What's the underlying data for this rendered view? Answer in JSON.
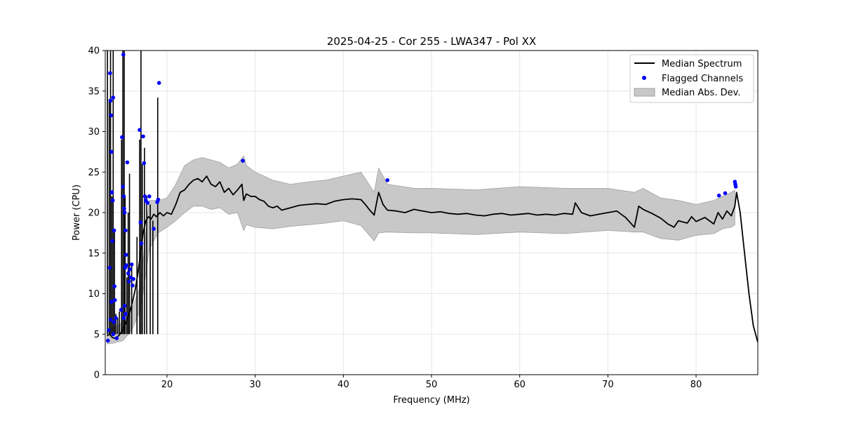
{
  "chart_data": {
    "type": "line",
    "title": "2025-04-25 - Cor 255 - LWA347 - Pol XX",
    "xlabel": "Frequency (MHz)",
    "ylabel": "Power (CPU)",
    "xlim": [
      13.0,
      87.0
    ],
    "ylim": [
      0,
      40
    ],
    "x_ticks": [
      20,
      30,
      40,
      50,
      60,
      70,
      80
    ],
    "y_ticks": [
      0,
      5,
      10,
      15,
      20,
      25,
      30,
      35,
      40
    ],
    "grid": true,
    "legend_position": "top-right",
    "legend": [
      "Median Spectrum",
      "Flagged Channels",
      "Median Abs. Dev."
    ],
    "colors": {
      "median": "#000000",
      "flagged": "#0000ff",
      "band": "#c8c8c8",
      "band_edge": "#a0a0a0",
      "grid": "#e6e6e6"
    },
    "series": [
      {
        "name": "Median Spectrum",
        "kind": "line",
        "x": [
          13.2,
          13.5,
          13.8,
          14.0,
          14.3,
          14.6,
          14.9,
          15.2,
          15.5,
          15.8,
          16.1,
          16.4,
          16.7,
          17.0,
          17.3,
          17.6,
          17.9,
          18.2,
          18.5,
          18.8,
          19.2,
          19.6,
          20.0,
          20.5,
          21.0,
          21.5,
          22.0,
          22.5,
          23.0,
          23.5,
          24.0,
          24.5,
          25.0,
          25.5,
          26.0,
          26.5,
          27.0,
          27.5,
          28.0,
          28.5,
          28.7,
          29.0,
          29.5,
          30.0,
          30.5,
          31.0,
          31.5,
          32.0,
          32.5,
          33.0,
          34.0,
          35.0,
          36.0,
          37.0,
          38.0,
          39.0,
          40.0,
          41.0,
          42.0,
          42.5,
          43.0,
          43.5,
          44.0,
          44.5,
          45.0,
          46.0,
          47.0,
          48.0,
          49.0,
          50.0,
          51.0,
          52.0,
          53.0,
          54.0,
          55.0,
          56.0,
          57.0,
          58.0,
          59.0,
          60.0,
          61.0,
          62.0,
          63.0,
          64.0,
          65.0,
          66.0,
          66.3,
          67.0,
          68.0,
          69.0,
          70.0,
          71.0,
          72.0,
          73.0,
          73.5,
          74.0,
          75.0,
          76.0,
          76.8,
          77.5,
          78.0,
          79.0,
          79.5,
          80.0,
          81.0,
          82.0,
          82.5,
          83.0,
          83.5,
          84.0,
          84.4,
          84.6,
          85.0,
          85.5,
          86.0,
          86.5,
          87.0
        ],
        "y": [
          4.8,
          5.0,
          4.6,
          4.5,
          4.6,
          4.9,
          5.4,
          6.0,
          6.8,
          7.8,
          9.0,
          10.5,
          12.5,
          15.0,
          17.5,
          19.0,
          19.5,
          19.2,
          19.8,
          19.5,
          20.0,
          19.6,
          20.0,
          19.8,
          21.0,
          22.5,
          22.8,
          23.5,
          24.0,
          24.2,
          23.8,
          24.5,
          23.5,
          23.2,
          23.8,
          22.5,
          23.0,
          22.2,
          22.8,
          23.5,
          21.5,
          22.3,
          22.0,
          22.0,
          21.6,
          21.4,
          20.8,
          20.6,
          20.8,
          20.3,
          20.6,
          20.9,
          21.0,
          21.1,
          21.0,
          21.4,
          21.6,
          21.7,
          21.6,
          21.0,
          20.3,
          19.7,
          22.5,
          21.0,
          20.3,
          20.2,
          20.0,
          20.4,
          20.2,
          20.0,
          20.1,
          19.9,
          19.8,
          19.9,
          19.7,
          19.6,
          19.8,
          19.9,
          19.7,
          19.8,
          19.9,
          19.7,
          19.8,
          19.7,
          19.9,
          19.8,
          21.2,
          20.0,
          19.6,
          19.8,
          20.0,
          20.2,
          19.4,
          18.2,
          20.8,
          20.4,
          19.9,
          19.3,
          18.6,
          18.2,
          19.0,
          18.7,
          19.5,
          18.9,
          19.4,
          18.6,
          20.0,
          19.2,
          20.2,
          19.6,
          20.8,
          22.5,
          20.0,
          15.0,
          10.0,
          6.0,
          4.0
        ]
      },
      {
        "name": "Median Abs. Dev.",
        "kind": "band",
        "x": [
          13.2,
          14.0,
          15.0,
          16.0,
          17.0,
          18.0,
          19.0,
          20.0,
          21.0,
          22.0,
          23.0,
          24.0,
          25.0,
          26.0,
          27.0,
          28.0,
          28.7,
          29.0,
          30.0,
          32.0,
          34.0,
          36.0,
          38.0,
          40.0,
          42.0,
          43.5,
          44.0,
          45.0,
          48.0,
          50.0,
          55.0,
          60.0,
          65.0,
          70.0,
          73.0,
          74.0,
          76.0,
          78.0,
          80.0,
          82.0,
          83.0,
          84.0,
          84.4
        ],
        "lower": [
          3.8,
          3.9,
          4.2,
          5.5,
          8.0,
          15.5,
          17.5,
          18.2,
          19.0,
          20.0,
          20.8,
          20.8,
          20.4,
          20.6,
          19.8,
          20.0,
          17.8,
          18.5,
          18.2,
          18.0,
          18.3,
          18.5,
          18.7,
          19.0,
          18.4,
          16.5,
          17.5,
          17.6,
          17.5,
          17.5,
          17.3,
          17.6,
          17.4,
          17.8,
          17.6,
          17.6,
          16.8,
          16.6,
          17.2,
          17.4,
          18.0,
          18.2,
          18.5
        ],
        "upper": [
          5.6,
          5.8,
          6.5,
          8.0,
          11.0,
          21.5,
          21.5,
          21.8,
          23.5,
          25.8,
          26.5,
          26.8,
          26.5,
          26.2,
          25.5,
          26.0,
          27.0,
          25.8,
          25.0,
          24.0,
          23.5,
          23.8,
          24.0,
          24.5,
          25.0,
          22.5,
          25.5,
          23.5,
          23.0,
          23.0,
          22.8,
          23.2,
          23.0,
          23.0,
          22.5,
          23.0,
          21.8,
          21.5,
          21.0,
          21.5,
          22.0,
          22.5,
          22.8
        ]
      },
      {
        "name": "Flagged Channels",
        "kind": "scatter",
        "x": [
          13.3,
          13.4,
          13.5,
          13.55,
          13.6,
          13.65,
          13.7,
          13.75,
          13.8,
          13.85,
          13.9,
          14.0,
          14.05,
          14.1,
          14.2,
          14.3,
          13.6,
          13.7,
          13.9,
          14.0,
          14.8,
          14.9,
          15.0,
          15.05,
          15.1,
          15.15,
          15.2,
          15.25,
          15.3,
          15.35,
          15.4,
          15.5,
          15.6,
          15.7,
          15.8,
          15.9,
          16.0,
          16.1,
          16.2,
          15.3,
          15.2,
          15.1,
          16.9,
          17.0,
          17.1,
          17.3,
          17.4,
          17.5,
          17.6,
          17.8,
          18.0,
          18.5,
          18.9,
          19.0,
          19.1,
          28.6,
          45.0,
          82.6,
          83.3,
          84.4,
          84.45,
          84.5
        ],
        "y": [
          4.2,
          5.5,
          13.2,
          37.2,
          33.8,
          32.0,
          27.5,
          22.5,
          16.5,
          21.5,
          34.2,
          17.8,
          10.9,
          9.2,
          7.0,
          4.5,
          6.8,
          9.0,
          5.0,
          6.5,
          8.0,
          29.3,
          23.2,
          39.5,
          22.0,
          20.5,
          20.0,
          13.2,
          17.8,
          14.8,
          13.5,
          26.2,
          12.5,
          11.5,
          13.0,
          12.0,
          13.6,
          11.0,
          11.8,
          7.5,
          8.5,
          7.0,
          30.2,
          18.8,
          16.2,
          29.4,
          26.1,
          22.0,
          21.5,
          21.2,
          22.0,
          18.0,
          21.3,
          21.6,
          36.0,
          26.4,
          24.0,
          22.1,
          22.4,
          23.8,
          23.5,
          23.2
        ]
      }
    ],
    "spikes": {
      "x": [
        13.25,
        13.45,
        13.6,
        13.75,
        13.9,
        14.05,
        14.2,
        14.4,
        14.6,
        14.85,
        15.0,
        15.15,
        15.25,
        15.45,
        15.6,
        15.75,
        16.0,
        16.6,
        16.9,
        17.05,
        17.2,
        17.45,
        17.7,
        18.1,
        18.4,
        18.95
      ],
      "y": [
        40.0,
        34.0,
        40.0,
        22.0,
        40.0,
        18.0,
        7.5,
        7.0,
        7.8,
        29.0,
        40.0,
        40.0,
        22.0,
        12.0,
        20.0,
        24.8,
        13.5,
        17.0,
        29.0,
        40.0,
        26.0,
        28.0,
        22.0,
        21.0,
        19.0,
        34.2
      ]
    }
  }
}
